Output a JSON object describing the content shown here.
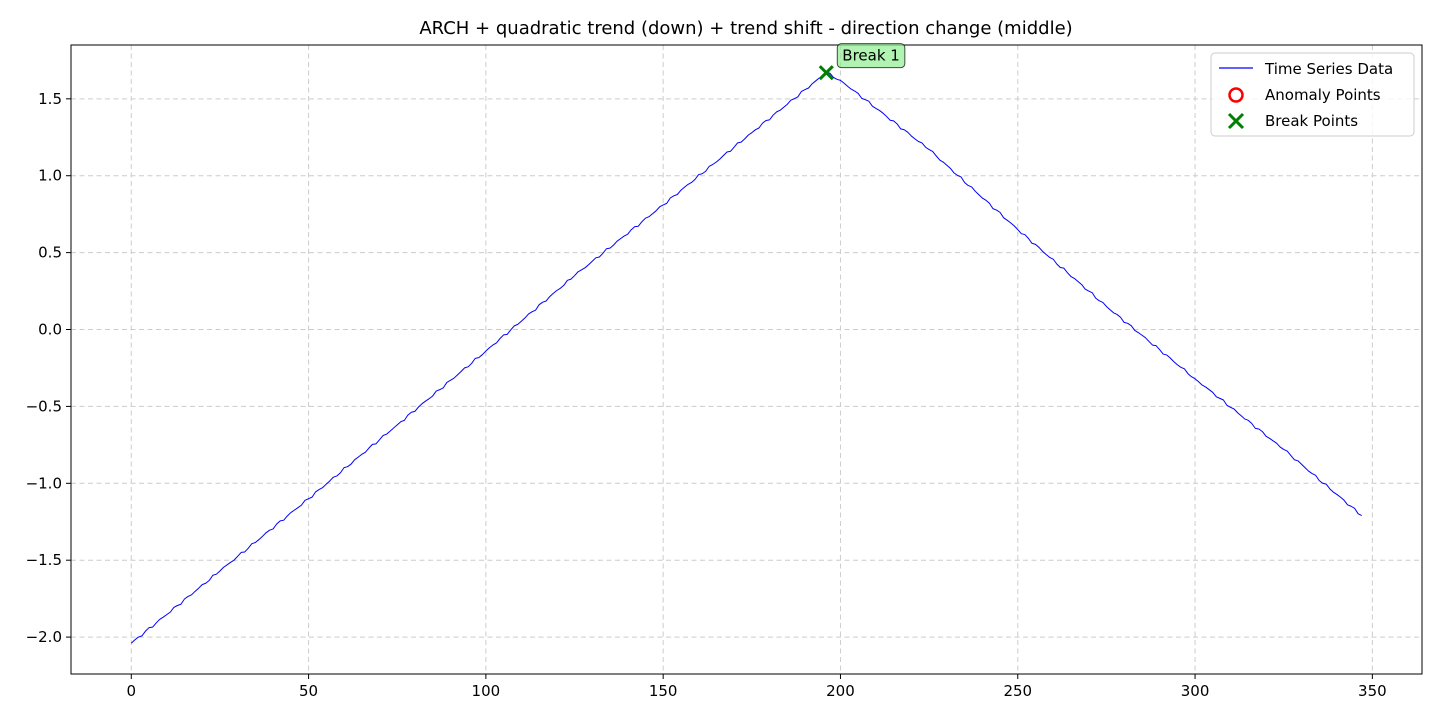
{
  "chart_data": {
    "type": "line",
    "title": "ARCH + quadratic trend (down) + trend shift - direction change (middle)",
    "xlabel": "",
    "ylabel": "",
    "xlim": [
      -17,
      364
    ],
    "ylim": [
      -2.24,
      1.85
    ],
    "x_ticks": [
      0,
      50,
      100,
      150,
      200,
      250,
      300,
      350
    ],
    "x_tick_labels": [
      "0",
      "50",
      "100",
      "150",
      "200",
      "250",
      "300",
      "350"
    ],
    "y_ticks": [
      -2.0,
      -1.5,
      -1.0,
      -0.5,
      0.0,
      0.5,
      1.0,
      1.5
    ],
    "y_tick_labels": [
      "−2.0",
      "−1.5",
      "−1.0",
      "−0.5",
      "0.0",
      "0.5",
      "1.0",
      "1.5"
    ],
    "grid": true,
    "legend_position": "top-right",
    "series": [
      {
        "name": "Time Series Data",
        "color": "#0000ff",
        "x": [
          0,
          25,
          50,
          75,
          100,
          125,
          150,
          175,
          196,
          200,
          225,
          250,
          275,
          300,
          325,
          347
        ],
        "y": [
          -2.04,
          -1.57,
          -1.1,
          -0.62,
          -0.14,
          0.35,
          0.81,
          1.28,
          1.67,
          1.62,
          1.17,
          0.65,
          0.15,
          -0.32,
          -0.78,
          -1.21
        ]
      }
    ],
    "anomaly_points": {
      "name": "Anomaly Points",
      "color": "#ff0000",
      "points": []
    },
    "break_points": {
      "name": "Break Points",
      "color": "#008000",
      "points": [
        {
          "x": 196,
          "y": 1.67,
          "label": "Break 1"
        }
      ]
    }
  }
}
